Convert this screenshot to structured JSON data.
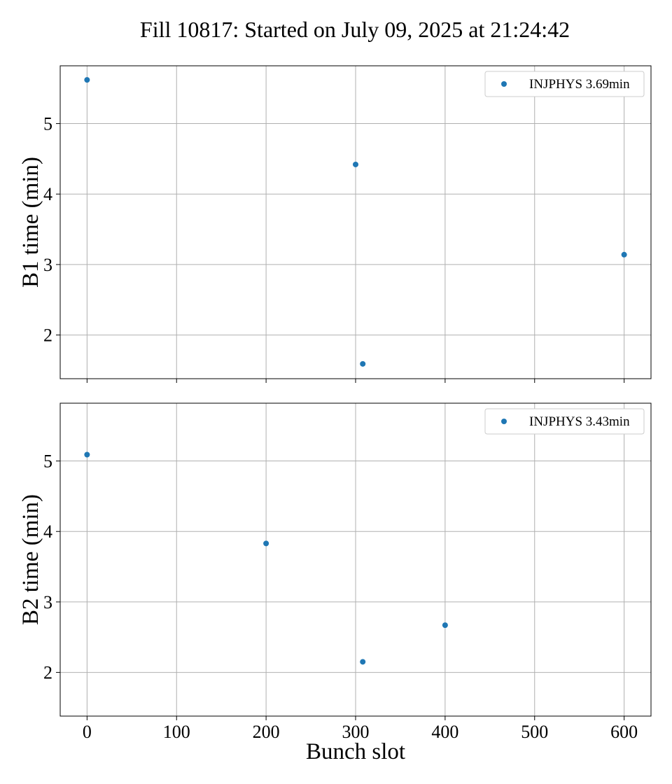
{
  "title": "Fill 10817: Started on July 09, 2025 at 21:24:42",
  "chart_data": [
    {
      "type": "scatter",
      "ylabel": "B1 time (min)",
      "xlabel": "",
      "xlim": [
        -30,
        630
      ],
      "ylim": [
        1.38,
        5.82
      ],
      "xticks": [
        0,
        100,
        200,
        300,
        400,
        500,
        600
      ],
      "yticks": [
        2,
        3,
        4,
        5
      ],
      "show_xtick_labels": false,
      "grid": true,
      "legend_position": "top-right",
      "series": [
        {
          "name": "INJPHYS 3.69min",
          "color": "#1f77b4",
          "points": [
            {
              "x": 0,
              "y": 5.62
            },
            {
              "x": 300,
              "y": 4.42
            },
            {
              "x": 308,
              "y": 1.59
            },
            {
              "x": 600,
              "y": 3.14
            }
          ]
        }
      ]
    },
    {
      "type": "scatter",
      "ylabel": "B2 time (min)",
      "xlabel": "Bunch slot",
      "xlim": [
        -30,
        630
      ],
      "ylim": [
        1.38,
        5.82
      ],
      "xticks": [
        0,
        100,
        200,
        300,
        400,
        500,
        600
      ],
      "yticks": [
        2,
        3,
        4,
        5
      ],
      "show_xtick_labels": true,
      "grid": true,
      "legend_position": "top-right",
      "series": [
        {
          "name": "INJPHYS 3.43min",
          "color": "#1f77b4",
          "points": [
            {
              "x": 0,
              "y": 5.09
            },
            {
              "x": 200,
              "y": 3.83
            },
            {
              "x": 308,
              "y": 2.15
            },
            {
              "x": 400,
              "y": 2.67
            }
          ]
        }
      ]
    }
  ]
}
